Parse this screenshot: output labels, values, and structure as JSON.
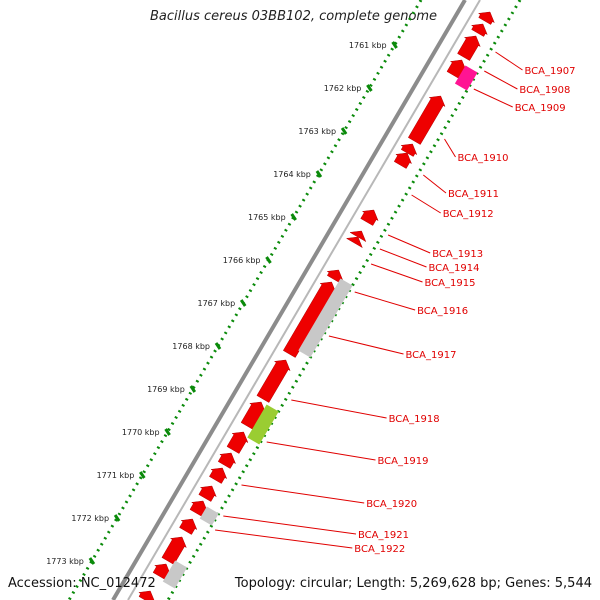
{
  "header": {
    "title": "Bacillus cereus 03BB102, complete genome"
  },
  "footer": {
    "accession": "Accession: NC_012472",
    "topology": "Topology: circular; Length: 5,269,628 bp; Genes: 5,544"
  },
  "colors": {
    "backbone": "#8c8c8c",
    "gene": "#ee0000",
    "pseudogene": "#c8c8c8",
    "rna": "#ff1493",
    "misc_feature": "#9acd32",
    "tick": "#0a8a0a",
    "label": "#e00000"
  },
  "scale": {
    "ticks": [
      "1761 kbp",
      "1762 kbp",
      "1763 kbp",
      "1764 kbp",
      "1765 kbp",
      "1766 kbp",
      "1767 kbp",
      "1768 kbp",
      "1769 kbp",
      "1770 kbp",
      "1771 kbp",
      "1772 kbp",
      "1773 kbp"
    ]
  },
  "gene_labels": [
    "BCA_1907",
    "BCA_1908",
    "BCA_1909",
    "BCA_1910",
    "BCA_1911",
    "BCA_1912",
    "BCA_1913",
    "BCA_1914",
    "BCA_1915",
    "BCA_1916",
    "BCA_1917",
    "BCA_1918",
    "BCA_1919",
    "BCA_1920",
    "BCA_1921",
    "BCA_1922"
  ],
  "features": [
    {
      "t0": 0.02,
      "t1": 0.035,
      "row": 0,
      "type": "gene"
    },
    {
      "t0": 0.04,
      "t1": 0.055,
      "row": 0,
      "type": "gene"
    },
    {
      "t0": 0.06,
      "t1": 0.095,
      "row": 0,
      "type": "gene"
    },
    {
      "t0": 0.1,
      "t1": 0.125,
      "row": 0,
      "type": "gene"
    },
    {
      "t0": 0.115,
      "t1": 0.145,
      "row": 1,
      "type": "rna"
    },
    {
      "t0": 0.16,
      "t1": 0.235,
      "row": 0,
      "type": "gene"
    },
    {
      "t0": 0.24,
      "t1": 0.255,
      "row": 0,
      "type": "gene"
    },
    {
      "t0": 0.255,
      "t1": 0.275,
      "row": 0,
      "type": "gene"
    },
    {
      "t0": 0.35,
      "t1": 0.37,
      "row": 0,
      "type": "gene"
    },
    {
      "t0": 0.385,
      "t1": 0.395,
      "row": 0,
      "type": "gene"
    },
    {
      "t0": 0.395,
      "t1": 0.405,
      "row": 0,
      "type": "gene"
    },
    {
      "t0": 0.45,
      "t1": 0.465,
      "row": 0,
      "type": "gene"
    },
    {
      "t0": 0.47,
      "t1": 0.59,
      "row": 0,
      "type": "gene"
    },
    {
      "t0": 0.47,
      "t1": 0.59,
      "row": 1,
      "type": "pseudogene"
    },
    {
      "t0": 0.6,
      "t1": 0.665,
      "row": 0,
      "type": "gene"
    },
    {
      "t0": 0.67,
      "t1": 0.71,
      "row": 0,
      "type": "gene"
    },
    {
      "t0": 0.68,
      "t1": 0.735,
      "row": 1,
      "type": "misc_feature"
    },
    {
      "t0": 0.72,
      "t1": 0.75,
      "row": 0,
      "type": "gene"
    },
    {
      "t0": 0.755,
      "t1": 0.775,
      "row": 0,
      "type": "gene"
    },
    {
      "t0": 0.78,
      "t1": 0.8,
      "row": 0,
      "type": "gene"
    },
    {
      "t0": 0.81,
      "t1": 0.83,
      "row": 0,
      "type": "gene"
    },
    {
      "t0": 0.835,
      "t1": 0.855,
      "row": 0,
      "type": "gene"
    },
    {
      "t0": 0.85,
      "t1": 0.87,
      "row": 1,
      "type": "pseudogene"
    },
    {
      "t0": 0.865,
      "t1": 0.885,
      "row": 0,
      "type": "gene"
    },
    {
      "t0": 0.895,
      "t1": 0.935,
      "row": 0,
      "type": "gene"
    },
    {
      "t0": 0.94,
      "t1": 0.96,
      "row": 0,
      "type": "gene"
    },
    {
      "t0": 0.94,
      "t1": 0.975,
      "row": 1,
      "type": "pseudogene"
    },
    {
      "t0": 0.985,
      "t1": 1.0,
      "row": 0,
      "type": "gene"
    }
  ]
}
